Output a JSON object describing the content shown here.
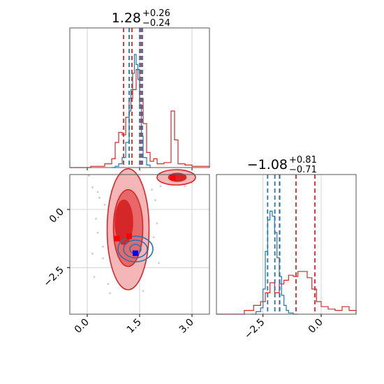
{
  "chart_data": {
    "type": "corner",
    "parameters": [
      {
        "title": {
          "value": "1.28",
          "plus": "+0.26",
          "minus": "−0.24"
        },
        "xlim": [
          -0.5,
          3.5
        ],
        "ticks": [
          0.0,
          1.5,
          3.0
        ],
        "tick_labels": [
          "0.0",
          "1.5",
          "3.0"
        ],
        "hist_blue": {
          "bins": [
            0.7,
            0.8,
            0.9,
            1.0,
            1.1,
            1.2,
            1.25,
            1.3,
            1.35,
            1.4,
            1.45,
            1.5,
            1.55,
            1.6,
            1.7,
            1.8
          ],
          "counts": [
            0.0,
            0.01,
            0.03,
            0.08,
            0.2,
            0.45,
            0.62,
            0.75,
            0.9,
            0.82,
            0.7,
            0.5,
            0.25,
            0.08,
            0.02
          ]
        },
        "hist_red": {
          "bins": [
            -0.5,
            0.1,
            0.5,
            0.7,
            0.8,
            0.9,
            1.0,
            1.1,
            1.2,
            1.3,
            1.4,
            1.5,
            1.6,
            1.7,
            1.8,
            1.9,
            2.0,
            2.2,
            2.4,
            2.5,
            2.6,
            2.8,
            3.0,
            3.5
          ],
          "counts": [
            0.0,
            0.01,
            0.03,
            0.07,
            0.2,
            0.28,
            0.26,
            0.4,
            0.55,
            0.62,
            0.78,
            0.55,
            0.35,
            0.12,
            0.05,
            0.07,
            0.03,
            0.04,
            0.45,
            0.22,
            0.03,
            0.02,
            0.01
          ]
        },
        "quantiles_red": [
          1.04,
          1.28,
          1.54
        ],
        "quantiles_blue": [
          1.2,
          1.5,
          1.58
        ]
      },
      {
        "title": {
          "value": "−1.08",
          "plus": "+0.81",
          "minus": "−0.71"
        },
        "xlim": [
          -4.5,
          1.5
        ],
        "ticks": [
          -2.5,
          0.0
        ],
        "tick_labels": [
          "−2.5",
          "0.0"
        ],
        "hist_blue": {
          "bins": [
            -3.0,
            -2.8,
            -2.6,
            -2.5,
            -2.4,
            -2.3,
            -2.2,
            -2.1,
            -2.0,
            -1.9,
            -1.8,
            -1.7,
            -1.6,
            -1.5,
            -1.4,
            -1.2,
            -1.0
          ],
          "counts": [
            0.0,
            0.02,
            0.05,
            0.2,
            0.5,
            0.75,
            0.82,
            0.78,
            0.65,
            0.45,
            0.3,
            0.15,
            0.07,
            0.03,
            0.01,
            0.0
          ]
        },
        "hist_red": {
          "bins": [
            -4.5,
            -3.3,
            -2.9,
            -2.6,
            -2.4,
            -2.2,
            -2.0,
            -1.8,
            -1.6,
            -1.4,
            -1.2,
            -1.0,
            -0.8,
            -0.6,
            -0.4,
            -0.2,
            0.0,
            0.3,
            0.6,
            0.9,
            1.2,
            1.5
          ],
          "counts": [
            0.0,
            0.03,
            0.07,
            0.1,
            0.17,
            0.25,
            0.17,
            0.24,
            0.27,
            0.31,
            0.3,
            0.34,
            0.34,
            0.29,
            0.2,
            0.1,
            0.06,
            0.04,
            0.03,
            0.06,
            0.03
          ]
        },
        "quantiles_red": [
          -1.79,
          -1.08,
          -0.27
        ],
        "quantiles_blue": [
          -2.3,
          -1.99,
          -1.78
        ]
      }
    ],
    "joint": {
      "xlim": [
        -0.5,
        3.5
      ],
      "ylim": [
        -4.5,
        1.5
      ],
      "xticks": [
        0.0,
        1.5,
        3.0
      ],
      "yticks": [
        -2.5,
        0.0
      ],
      "ytick_labels": [
        "−2.5",
        "0.0"
      ],
      "red_contours": [
        {
          "cx": 1.17,
          "cy": -0.85,
          "rx": 0.6,
          "ry": 2.6,
          "level": "outer"
        },
        {
          "cx": 1.17,
          "cy": -0.8,
          "rx": 0.42,
          "ry": 1.65,
          "level": "middle"
        },
        {
          "cx": 1.05,
          "cy": -0.55,
          "rx": 0.25,
          "ry": 0.95,
          "level": "inner"
        },
        {
          "cx": 2.55,
          "cy": 1.38,
          "rx": 0.55,
          "ry": 0.33,
          "level": "outer"
        },
        {
          "cx": 2.58,
          "cy": 1.38,
          "rx": 0.25,
          "ry": 0.17,
          "level": "inner"
        }
      ],
      "blue_contours": [
        {
          "cx": 1.38,
          "cy": -1.7,
          "rx": 0.5,
          "ry": 0.55,
          "level": "outer"
        },
        {
          "cx": 1.38,
          "cy": -1.7,
          "rx": 0.34,
          "ry": 0.38,
          "level": "middle"
        },
        {
          "cx": 1.38,
          "cy": -1.7,
          "rx": 0.16,
          "ry": 0.2,
          "level": "inner"
        }
      ],
      "red_markers": [
        {
          "x": 0.85,
          "y": -1.25
        },
        {
          "x": 1.2,
          "y": -1.15
        },
        {
          "x": 2.45,
          "y": 1.38
        }
      ],
      "blue_markers": [
        {
          "x": 1.38,
          "y": -1.88
        }
      ],
      "scatter_points": [
        {
          "x": 0.05,
          "y": 1.45
        },
        {
          "x": 0.15,
          "y": 0.95
        },
        {
          "x": 0.3,
          "y": 0.75
        },
        {
          "x": 0.25,
          "y": -0.4
        },
        {
          "x": 0.3,
          "y": -1.0
        },
        {
          "x": 0.2,
          "y": -2.9
        },
        {
          "x": 0.45,
          "y": -2.1
        },
        {
          "x": 0.5,
          "y": 0.2
        },
        {
          "x": 0.6,
          "y": -3.2
        },
        {
          "x": 0.7,
          "y": 0.8
        },
        {
          "x": 0.45,
          "y": -1.6
        },
        {
          "x": 1.1,
          "y": 0.95
        },
        {
          "x": 1.95,
          "y": 0.4
        },
        {
          "x": 2.0,
          "y": -0.6
        },
        {
          "x": 1.9,
          "y": -1.2
        },
        {
          "x": 2.1,
          "y": 1.0
        },
        {
          "x": 2.8,
          "y": 1.0
        },
        {
          "x": 3.0,
          "y": 1.15
        },
        {
          "x": 1.6,
          "y": -3.5
        },
        {
          "x": 0.65,
          "y": -3.6
        },
        {
          "x": 1.85,
          "y": 0.85
        },
        {
          "x": 0.35,
          "y": 0.5
        },
        {
          "x": 0.15,
          "y": -1.9
        },
        {
          "x": 2.05,
          "y": -2.3
        }
      ]
    },
    "colors": {
      "red": "#d62728",
      "blue": "#1f77b4",
      "marker_red": "#ff0000",
      "marker_blue": "#0000ff",
      "red_fill_outer": "#f4b6b6",
      "red_fill_middle": "#e8686a",
      "red_fill_inner": "#d62728",
      "grid": "#c8c8c8",
      "axis": "#555555",
      "scatter": "#cccccc"
    }
  }
}
